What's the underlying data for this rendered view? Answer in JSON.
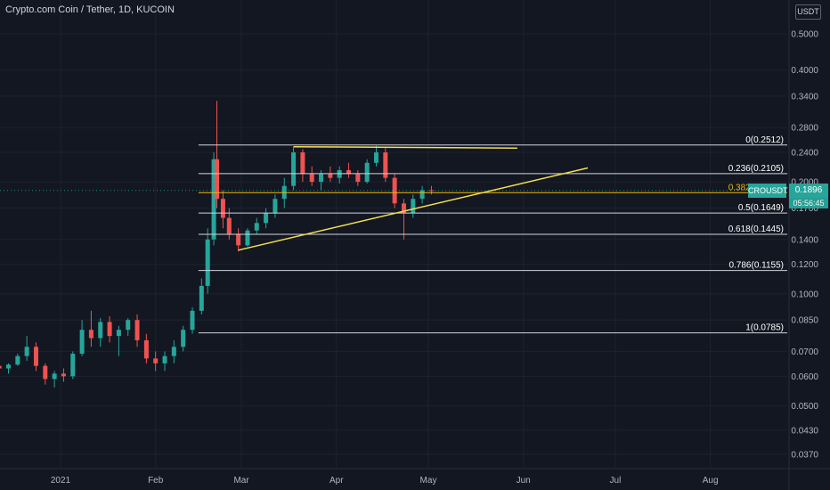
{
  "header": {
    "title": "Crypto.com Coin / Tether, 1D, KUCOIN",
    "unit_badge": "USDT"
  },
  "price_tag": {
    "symbol": "CROUSDT",
    "price": "0.1896",
    "countdown": "05:56:45",
    "color": "#26a69a"
  },
  "colors": {
    "background": "#131722",
    "up_candle": "#26a69a",
    "down_candle": "#ef5350",
    "fib_line": "#d1d4dc",
    "trendline": "#f5e14b",
    "current_price_line": "#f0b90b"
  },
  "chart_data": {
    "type": "candlestick",
    "scale": "log",
    "ylim": [
      0.034,
      0.64
    ],
    "y_ticks": [
      "0.5000",
      "0.4000",
      "0.3400",
      "0.2800",
      "0.2400",
      "0.2000",
      "0.1700",
      "0.1400",
      "0.1200",
      "0.1000",
      "0.0850",
      "0.0700",
      "0.0600",
      "0.0500",
      "0.0430",
      "0.0370"
    ],
    "y_tick_values": [
      0.5,
      0.4,
      0.34,
      0.28,
      0.24,
      0.2,
      0.17,
      0.14,
      0.12,
      0.1,
      0.085,
      0.07,
      0.06,
      0.05,
      0.043,
      0.037
    ],
    "x_ticks": [
      "2021",
      "Feb",
      "Mar",
      "Apr",
      "May",
      "Jun",
      "Jul",
      "Aug"
    ],
    "x_tick_dates": [
      "2021-01-01",
      "2021-02-01",
      "2021-03-01",
      "2021-04-01",
      "2021-05-01",
      "2021-06-01",
      "2021-07-01",
      "2021-08-01"
    ],
    "x_range": [
      "2020-12-12",
      "2021-08-31"
    ],
    "fib_levels": [
      {
        "label": "0(0.2512)",
        "value": 0.2512
      },
      {
        "label": "0.236(0.2105)",
        "value": 0.2105
      },
      {
        "label": "0.382(0.1870)",
        "value": 0.187
      },
      {
        "label": "0.5(0.1649)",
        "value": 0.1649
      },
      {
        "label": "0.618(0.1445)",
        "value": 0.1445
      },
      {
        "label": "0.786(0.1155)",
        "value": 0.1155
      },
      {
        "label": "1(0.0785)",
        "value": 0.0785
      }
    ],
    "fib_start_date": "2021-02-15",
    "trendlines": [
      {
        "start": [
          "2021-02-28",
          0.131
        ],
        "end": [
          "2021-06-22",
          0.218
        ],
        "color": "#f5e14b"
      },
      {
        "start": [
          "2021-03-18",
          0.2485
        ],
        "end": [
          "2021-05-30",
          0.2465
        ],
        "color": "#f5e14b"
      }
    ],
    "current_price": 0.1896,
    "candles": [
      [
        "2020-12-12",
        0.064,
        0.066,
        0.062,
        0.063
      ],
      [
        "2020-12-15",
        0.063,
        0.065,
        0.061,
        0.0645
      ],
      [
        "2020-12-18",
        0.0645,
        0.069,
        0.064,
        0.068
      ],
      [
        "2020-12-21",
        0.068,
        0.077,
        0.066,
        0.072
      ],
      [
        "2020-12-24",
        0.072,
        0.074,
        0.062,
        0.064
      ],
      [
        "2020-12-27",
        0.064,
        0.065,
        0.057,
        0.059
      ],
      [
        "2020-12-30",
        0.059,
        0.062,
        0.056,
        0.061
      ],
      [
        "2021-01-02",
        0.061,
        0.063,
        0.058,
        0.06
      ],
      [
        "2021-01-05",
        0.06,
        0.07,
        0.059,
        0.069
      ],
      [
        "2021-01-08",
        0.069,
        0.085,
        0.068,
        0.08
      ],
      [
        "2021-01-11",
        0.08,
        0.09,
        0.072,
        0.076
      ],
      [
        "2021-01-14",
        0.076,
        0.086,
        0.072,
        0.084
      ],
      [
        "2021-01-17",
        0.084,
        0.087,
        0.074,
        0.077
      ],
      [
        "2021-01-20",
        0.077,
        0.082,
        0.068,
        0.08
      ],
      [
        "2021-01-23",
        0.08,
        0.086,
        0.077,
        0.085
      ],
      [
        "2021-01-26",
        0.085,
        0.088,
        0.072,
        0.075
      ],
      [
        "2021-01-29",
        0.075,
        0.078,
        0.065,
        0.067
      ],
      [
        "2021-02-01",
        0.067,
        0.07,
        0.062,
        0.065
      ],
      [
        "2021-02-04",
        0.065,
        0.07,
        0.062,
        0.068
      ],
      [
        "2021-02-07",
        0.068,
        0.075,
        0.065,
        0.072
      ],
      [
        "2021-02-10",
        0.072,
        0.082,
        0.07,
        0.08
      ],
      [
        "2021-02-13",
        0.08,
        0.092,
        0.078,
        0.09
      ],
      [
        "2021-02-16",
        0.09,
        0.11,
        0.088,
        0.105
      ],
      [
        "2021-02-18",
        0.105,
        0.15,
        0.1,
        0.14
      ],
      [
        "2021-02-20",
        0.14,
        0.24,
        0.135,
        0.23
      ],
      [
        "2021-02-21",
        0.23,
        0.33,
        0.17,
        0.18
      ],
      [
        "2021-02-23",
        0.18,
        0.19,
        0.15,
        0.16
      ],
      [
        "2021-02-25",
        0.16,
        0.17,
        0.14,
        0.145
      ],
      [
        "2021-02-28",
        0.145,
        0.15,
        0.13,
        0.135
      ],
      [
        "2021-03-03",
        0.135,
        0.15,
        0.134,
        0.148
      ],
      [
        "2021-03-06",
        0.148,
        0.16,
        0.145,
        0.155
      ],
      [
        "2021-03-09",
        0.155,
        0.17,
        0.15,
        0.165
      ],
      [
        "2021-03-12",
        0.165,
        0.185,
        0.16,
        0.18
      ],
      [
        "2021-03-15",
        0.18,
        0.205,
        0.17,
        0.195
      ],
      [
        "2021-03-18",
        0.195,
        0.248,
        0.19,
        0.24
      ],
      [
        "2021-03-21",
        0.24,
        0.245,
        0.2,
        0.21
      ],
      [
        "2021-03-24",
        0.21,
        0.22,
        0.195,
        0.2
      ],
      [
        "2021-03-27",
        0.2,
        0.215,
        0.19,
        0.21
      ],
      [
        "2021-03-30",
        0.21,
        0.22,
        0.2,
        0.205
      ],
      [
        "2021-04-02",
        0.205,
        0.22,
        0.198,
        0.215
      ],
      [
        "2021-04-05",
        0.215,
        0.225,
        0.205,
        0.21
      ],
      [
        "2021-04-08",
        0.21,
        0.215,
        0.195,
        0.2
      ],
      [
        "2021-04-11",
        0.2,
        0.23,
        0.198,
        0.225
      ],
      [
        "2021-04-14",
        0.225,
        0.25,
        0.22,
        0.24
      ],
      [
        "2021-04-17",
        0.24,
        0.248,
        0.2,
        0.205
      ],
      [
        "2021-04-20",
        0.205,
        0.21,
        0.17,
        0.175
      ],
      [
        "2021-04-23",
        0.175,
        0.18,
        0.14,
        0.165
      ],
      [
        "2021-04-26",
        0.165,
        0.185,
        0.16,
        0.18
      ],
      [
        "2021-04-29",
        0.18,
        0.195,
        0.175,
        0.19
      ],
      [
        "2021-05-02",
        0.19,
        0.195,
        0.185,
        0.1896
      ]
    ],
    "candle_fields": [
      "date",
      "open",
      "high",
      "low",
      "close"
    ]
  }
}
